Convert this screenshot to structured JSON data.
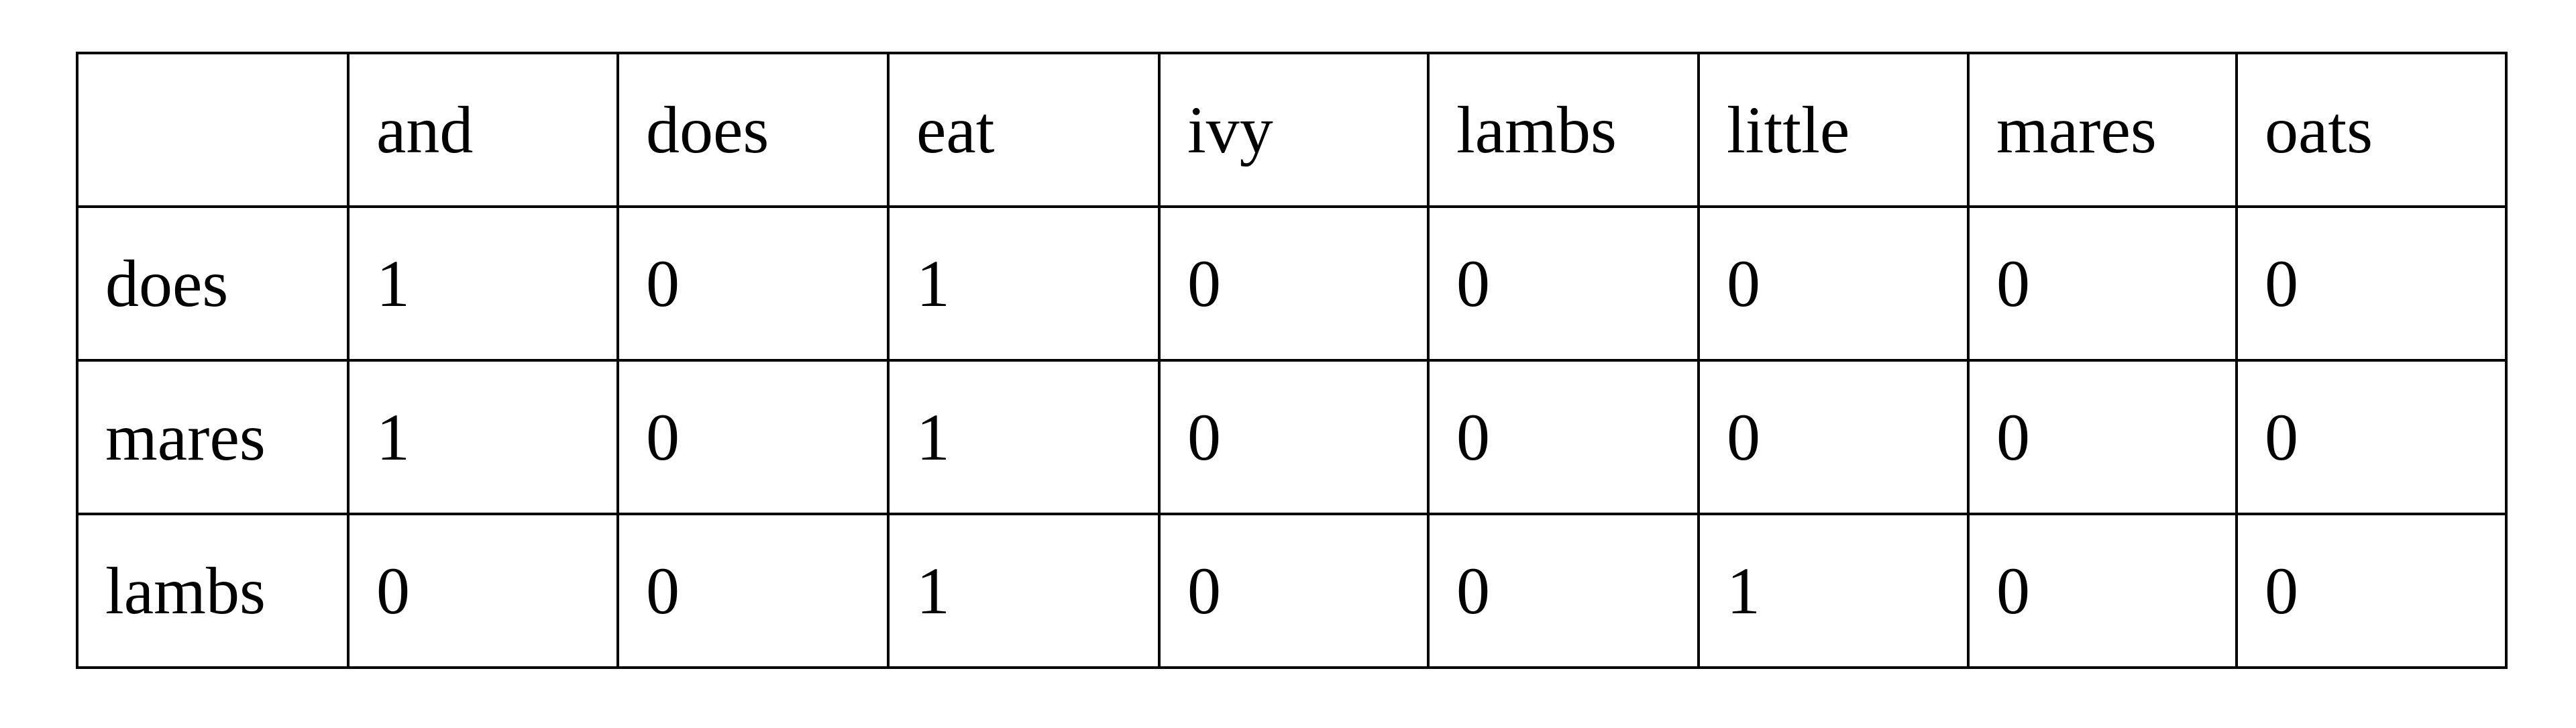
{
  "table": {
    "corner": "",
    "columns": [
      "and",
      "does",
      "eat",
      "ivy",
      "lambs",
      "little",
      "mares",
      "oats"
    ],
    "rows": [
      {
        "label": "does",
        "values": [
          "1",
          "0",
          "1",
          "0",
          "0",
          "0",
          "0",
          "0"
        ]
      },
      {
        "label": "mares",
        "values": [
          "1",
          "0",
          "1",
          "0",
          "0",
          "0",
          "0",
          "0"
        ]
      },
      {
        "label": "lambs",
        "values": [
          "0",
          "0",
          "1",
          "0",
          "0",
          "1",
          "0",
          "0"
        ]
      }
    ]
  }
}
